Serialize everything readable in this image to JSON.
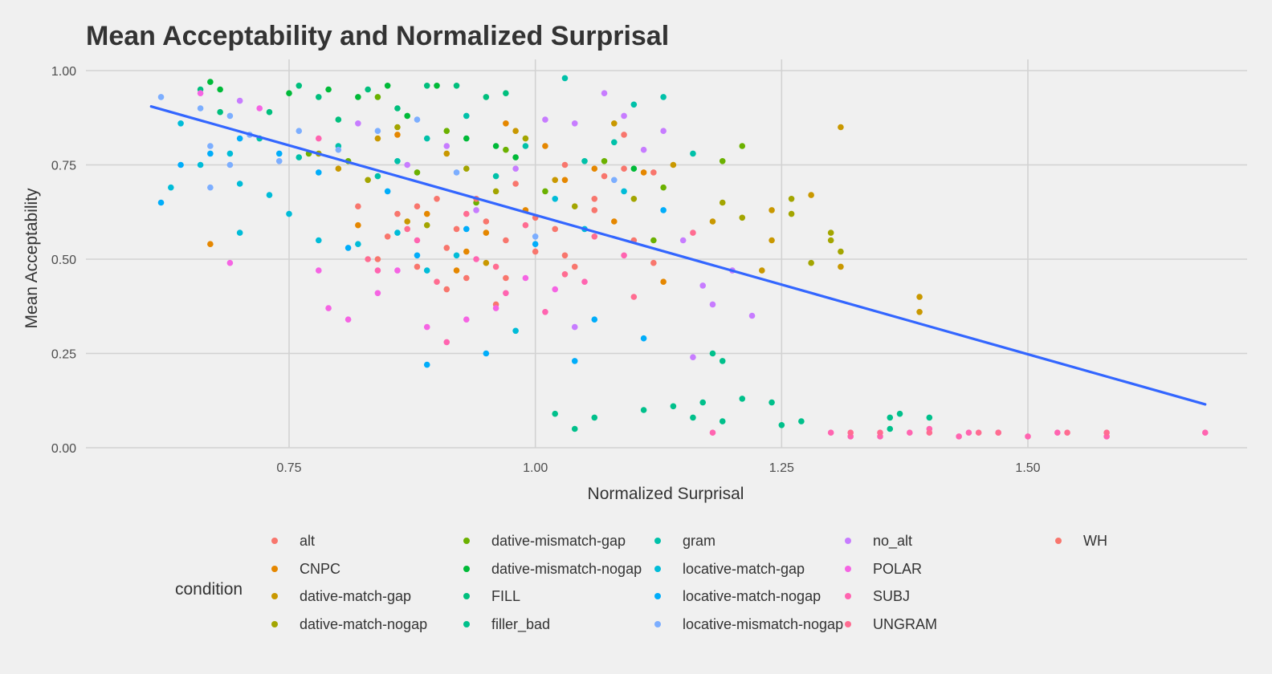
{
  "chart_data": {
    "type": "scatter",
    "title": "Mean Acceptability and Normalized Surprisal",
    "xlabel": "Normalized Surprisal",
    "ylabel": "Mean Acceptability",
    "xlim": [
      0.6,
      1.73
    ],
    "ylim": [
      0.0,
      1.0
    ],
    "x_ticks": [
      0.75,
      1.0,
      1.25,
      1.5
    ],
    "x_tick_labels": [
      "0.75",
      "1.00",
      "1.25",
      "1.50"
    ],
    "y_ticks": [
      0.0,
      0.25,
      0.5,
      0.75,
      1.0
    ],
    "y_tick_labels": [
      "0.00",
      "0.25",
      "0.50",
      "0.75",
      "1.00"
    ],
    "grid": true,
    "legend_title": "condition",
    "legend_position": "bottom",
    "trend_line": {
      "color": "#3366FF",
      "x": [
        0.61,
        1.68
      ],
      "y": [
        0.905,
        0.115
      ]
    },
    "series": [
      {
        "name": "alt",
        "color": "#F8766D",
        "points": [
          [
            0.84,
            0.5
          ],
          [
            0.86,
            0.62
          ],
          [
            0.88,
            0.48
          ],
          [
            0.9,
            0.66
          ],
          [
            0.92,
            0.58
          ],
          [
            0.93,
            0.45
          ],
          [
            0.95,
            0.6
          ],
          [
            0.97,
            0.55
          ],
          [
            0.98,
            0.7
          ],
          [
            1.0,
            0.52
          ],
          [
            1.02,
            0.58
          ],
          [
            1.03,
            0.75
          ],
          [
            1.04,
            0.48
          ],
          [
            1.06,
            0.66
          ],
          [
            1.07,
            0.72
          ],
          [
            1.09,
            0.83
          ],
          [
            1.1,
            0.55
          ],
          [
            1.12,
            0.73
          ],
          [
            0.91,
            0.42
          ],
          [
            0.96,
            0.38
          ]
        ]
      },
      {
        "name": "CNPC",
        "color": "#E58700",
        "points": [
          [
            0.67,
            0.54
          ],
          [
            0.82,
            0.59
          ],
          [
            0.86,
            0.83
          ],
          [
            0.89,
            0.62
          ],
          [
            0.92,
            0.47
          ],
          [
            0.95,
            0.57
          ],
          [
            0.97,
            0.86
          ],
          [
            0.99,
            0.63
          ],
          [
            1.01,
            0.8
          ],
          [
            1.03,
            0.71
          ],
          [
            1.06,
            0.74
          ],
          [
            1.08,
            0.6
          ],
          [
            1.11,
            0.73
          ],
          [
            1.13,
            0.44
          ],
          [
            0.93,
            0.52
          ]
        ]
      },
      {
        "name": "dative-match-gap",
        "color": "#C99800",
        "points": [
          [
            0.8,
            0.74
          ],
          [
            0.84,
            0.82
          ],
          [
            0.87,
            0.6
          ],
          [
            0.91,
            0.78
          ],
          [
            0.95,
            0.49
          ],
          [
            0.98,
            0.84
          ],
          [
            1.02,
            0.71
          ],
          [
            1.08,
            0.86
          ],
          [
            1.14,
            0.75
          ],
          [
            1.18,
            0.6
          ],
          [
            1.23,
            0.47
          ],
          [
            1.24,
            0.55
          ],
          [
            1.28,
            0.67
          ],
          [
            1.31,
            0.85
          ],
          [
            1.31,
            0.48
          ],
          [
            1.39,
            0.4
          ],
          [
            1.39,
            0.36
          ],
          [
            1.24,
            0.63
          ]
        ]
      },
      {
        "name": "dative-match-nogap",
        "color": "#A3A500",
        "points": [
          [
            0.78,
            0.78
          ],
          [
            0.83,
            0.71
          ],
          [
            0.86,
            0.85
          ],
          [
            0.89,
            0.59
          ],
          [
            0.93,
            0.74
          ],
          [
            0.96,
            0.68
          ],
          [
            0.99,
            0.82
          ],
          [
            1.04,
            0.64
          ],
          [
            1.1,
            0.66
          ],
          [
            1.19,
            0.65
          ],
          [
            1.21,
            0.61
          ],
          [
            1.26,
            0.66
          ],
          [
            1.26,
            0.62
          ],
          [
            1.28,
            0.49
          ],
          [
            1.3,
            0.57
          ],
          [
            1.3,
            0.55
          ],
          [
            1.31,
            0.52
          ]
        ]
      },
      {
        "name": "dative-mismatch-gap",
        "color": "#6BB100",
        "points": [
          [
            0.77,
            0.78
          ],
          [
            0.81,
            0.76
          ],
          [
            0.84,
            0.93
          ],
          [
            0.88,
            0.73
          ],
          [
            0.91,
            0.84
          ],
          [
            0.94,
            0.65
          ],
          [
            0.97,
            0.79
          ],
          [
            1.01,
            0.68
          ],
          [
            1.07,
            0.76
          ],
          [
            1.13,
            0.69
          ],
          [
            1.19,
            0.76
          ],
          [
            1.21,
            0.8
          ],
          [
            1.12,
            0.55
          ]
        ]
      },
      {
        "name": "dative-mismatch-nogap",
        "color": "#00BA38",
        "points": [
          [
            0.67,
            0.97
          ],
          [
            0.68,
            0.95
          ],
          [
            0.75,
            0.94
          ],
          [
            0.79,
            0.95
          ],
          [
            0.82,
            0.93
          ],
          [
            0.85,
            0.96
          ],
          [
            0.87,
            0.88
          ],
          [
            0.9,
            0.96
          ],
          [
            0.93,
            0.82
          ],
          [
            0.96,
            0.8
          ],
          [
            0.98,
            0.77
          ],
          [
            1.1,
            0.74
          ]
        ]
      },
      {
        "name": "FILL",
        "color": "#00BF7D",
        "points": [
          [
            0.66,
            0.95
          ],
          [
            0.68,
            0.89
          ],
          [
            0.73,
            0.89
          ],
          [
            0.76,
            0.96
          ],
          [
            0.8,
            0.87
          ],
          [
            0.83,
            0.95
          ],
          [
            0.86,
            0.9
          ],
          [
            0.89,
            0.96
          ],
          [
            0.92,
            0.96
          ],
          [
            0.95,
            0.93
          ],
          [
            0.97,
            0.94
          ],
          [
            0.78,
            0.93
          ]
        ]
      },
      {
        "name": "filler_bad",
        "color": "#00C08B",
        "points": [
          [
            1.02,
            0.09
          ],
          [
            1.04,
            0.05
          ],
          [
            1.06,
            0.08
          ],
          [
            1.11,
            0.1
          ],
          [
            1.14,
            0.11
          ],
          [
            1.16,
            0.08
          ],
          [
            1.17,
            0.12
          ],
          [
            1.19,
            0.07
          ],
          [
            1.21,
            0.13
          ],
          [
            1.24,
            0.12
          ],
          [
            1.25,
            0.06
          ],
          [
            1.27,
            0.07
          ],
          [
            1.36,
            0.08
          ],
          [
            1.37,
            0.09
          ],
          [
            1.4,
            0.08
          ],
          [
            1.18,
            0.25
          ],
          [
            1.19,
            0.23
          ],
          [
            1.36,
            0.05
          ]
        ]
      },
      {
        "name": "gram",
        "color": "#00C1A9",
        "points": [
          [
            0.72,
            0.82
          ],
          [
            0.76,
            0.77
          ],
          [
            0.8,
            0.8
          ],
          [
            0.84,
            0.72
          ],
          [
            0.86,
            0.76
          ],
          [
            0.89,
            0.82
          ],
          [
            0.93,
            0.88
          ],
          [
            0.96,
            0.72
          ],
          [
            0.99,
            0.8
          ],
          [
            1.03,
            0.98
          ],
          [
            1.05,
            0.76
          ],
          [
            1.08,
            0.81
          ],
          [
            1.1,
            0.91
          ],
          [
            1.13,
            0.93
          ],
          [
            1.16,
            0.78
          ]
        ]
      },
      {
        "name": "locative-match-gap",
        "color": "#00BCD8",
        "points": [
          [
            0.63,
            0.69
          ],
          [
            0.64,
            0.86
          ],
          [
            0.66,
            0.75
          ],
          [
            0.69,
            0.78
          ],
          [
            0.7,
            0.57
          ],
          [
            0.73,
            0.67
          ],
          [
            0.75,
            0.62
          ],
          [
            0.78,
            0.55
          ],
          [
            0.82,
            0.54
          ],
          [
            0.86,
            0.57
          ],
          [
            0.89,
            0.47
          ],
          [
            0.92,
            0.51
          ],
          [
            0.98,
            0.31
          ],
          [
            1.02,
            0.66
          ],
          [
            1.05,
            0.58
          ],
          [
            1.09,
            0.68
          ],
          [
            0.7,
            0.7
          ]
        ]
      },
      {
        "name": "locative-match-nogap",
        "color": "#00ADFA",
        "points": [
          [
            0.62,
            0.65
          ],
          [
            0.64,
            0.75
          ],
          [
            0.67,
            0.78
          ],
          [
            0.7,
            0.82
          ],
          [
            0.74,
            0.78
          ],
          [
            0.78,
            0.73
          ],
          [
            0.81,
            0.53
          ],
          [
            0.85,
            0.68
          ],
          [
            0.88,
            0.51
          ],
          [
            0.89,
            0.22
          ],
          [
            0.93,
            0.58
          ],
          [
            0.95,
            0.25
          ],
          [
            1.0,
            0.54
          ],
          [
            1.04,
            0.23
          ],
          [
            1.06,
            0.34
          ],
          [
            1.11,
            0.29
          ],
          [
            1.13,
            0.63
          ]
        ]
      },
      {
        "name": "locative-mismatch-nogap",
        "color": "#7CAEFF",
        "points": [
          [
            0.62,
            0.93
          ],
          [
            0.66,
            0.9
          ],
          [
            0.67,
            0.8
          ],
          [
            0.69,
            0.88
          ],
          [
            0.71,
            0.83
          ],
          [
            0.67,
            0.69
          ],
          [
            0.74,
            0.76
          ],
          [
            0.76,
            0.84
          ],
          [
            0.8,
            0.79
          ],
          [
            0.84,
            0.84
          ],
          [
            0.88,
            0.87
          ],
          [
            0.92,
            0.73
          ],
          [
            1.0,
            0.56
          ],
          [
            1.08,
            0.71
          ],
          [
            0.69,
            0.75
          ]
        ]
      },
      {
        "name": "no_alt",
        "color": "#C77CFF",
        "points": [
          [
            0.7,
            0.92
          ],
          [
            0.82,
            0.86
          ],
          [
            0.87,
            0.75
          ],
          [
            0.91,
            0.8
          ],
          [
            0.94,
            0.63
          ],
          [
            0.98,
            0.74
          ],
          [
            1.01,
            0.87
          ],
          [
            1.04,
            0.86
          ],
          [
            1.07,
            0.94
          ],
          [
            1.09,
            0.88
          ],
          [
            1.11,
            0.79
          ],
          [
            1.13,
            0.84
          ],
          [
            1.15,
            0.55
          ],
          [
            1.17,
            0.43
          ],
          [
            1.18,
            0.38
          ],
          [
            1.2,
            0.47
          ],
          [
            1.22,
            0.35
          ],
          [
            1.16,
            0.24
          ],
          [
            1.04,
            0.32
          ]
        ]
      },
      {
        "name": "POLAR",
        "color": "#F564E3",
        "points": [
          [
            0.66,
            0.94
          ],
          [
            0.69,
            0.49
          ],
          [
            0.78,
            0.47
          ],
          [
            0.79,
            0.37
          ],
          [
            0.81,
            0.34
          ],
          [
            0.84,
            0.41
          ],
          [
            0.86,
            0.47
          ],
          [
            0.89,
            0.32
          ],
          [
            0.93,
            0.34
          ],
          [
            0.96,
            0.37
          ],
          [
            0.99,
            0.45
          ],
          [
            1.02,
            0.42
          ],
          [
            0.72,
            0.9
          ]
        ]
      },
      {
        "name": "SUBJ",
        "color": "#FF64B0",
        "points": [
          [
            0.78,
            0.82
          ],
          [
            0.84,
            0.47
          ],
          [
            0.88,
            0.55
          ],
          [
            0.91,
            0.28
          ],
          [
            0.94,
            0.5
          ],
          [
            0.97,
            0.41
          ],
          [
            1.01,
            0.36
          ],
          [
            1.05,
            0.44
          ],
          [
            1.09,
            0.51
          ],
          [
            1.18,
            0.04
          ],
          [
            1.3,
            0.04
          ],
          [
            1.32,
            0.03
          ],
          [
            1.35,
            0.03
          ],
          [
            1.38,
            0.04
          ],
          [
            1.4,
            0.05
          ],
          [
            1.43,
            0.03
          ],
          [
            1.44,
            0.04
          ],
          [
            1.47,
            0.04
          ],
          [
            1.5,
            0.03
          ],
          [
            1.53,
            0.04
          ],
          [
            1.58,
            0.03
          ],
          [
            1.68,
            0.04
          ]
        ]
      },
      {
        "name": "UNGRAM",
        "color": "#FF6C91",
        "points": [
          [
            0.83,
            0.5
          ],
          [
            0.87,
            0.58
          ],
          [
            0.9,
            0.44
          ],
          [
            0.93,
            0.62
          ],
          [
            0.96,
            0.48
          ],
          [
            0.99,
            0.59
          ],
          [
            1.03,
            0.46
          ],
          [
            1.06,
            0.56
          ],
          [
            1.1,
            0.4
          ],
          [
            1.16,
            0.57
          ],
          [
            1.32,
            0.04
          ],
          [
            1.35,
            0.04
          ],
          [
            1.4,
            0.04
          ],
          [
            1.45,
            0.04
          ],
          [
            1.47,
            0.04
          ],
          [
            1.54,
            0.04
          ],
          [
            1.58,
            0.04
          ]
        ]
      },
      {
        "name": "WH",
        "color": "#F8766D",
        "points": [
          [
            0.82,
            0.64
          ],
          [
            0.85,
            0.56
          ],
          [
            0.88,
            0.64
          ],
          [
            0.91,
            0.53
          ],
          [
            0.94,
            0.66
          ],
          [
            0.97,
            0.45
          ],
          [
            1.0,
            0.61
          ],
          [
            1.03,
            0.51
          ],
          [
            1.06,
            0.63
          ],
          [
            1.09,
            0.74
          ],
          [
            1.12,
            0.49
          ]
        ]
      }
    ]
  }
}
